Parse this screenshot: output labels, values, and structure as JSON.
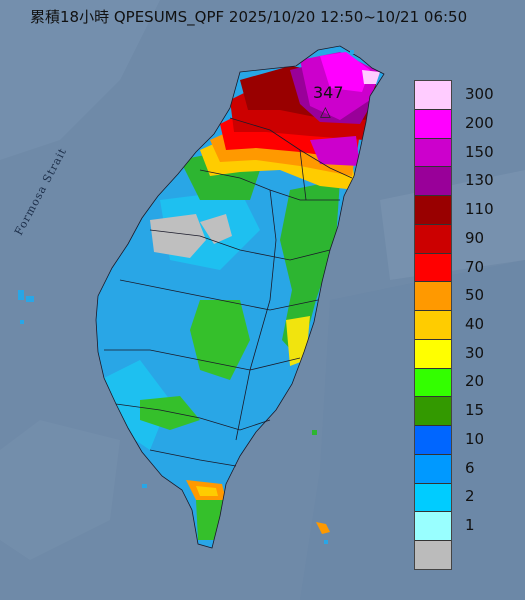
{
  "title": "累積18小時 QPESUMS_QPF 2025/10/20 12:50~10/21 06:50",
  "strait_label": "Formosa Strait",
  "peak_value": "347",
  "peak_marker_icon": "triangle-marker-icon",
  "colors": {
    "sea": "#6f8aa8",
    "land_base": "#29a6e6"
  },
  "legend": {
    "items": [
      {
        "label": "300",
        "color": "#ffccff"
      },
      {
        "label": "200",
        "color": "#ff00ff"
      },
      {
        "label": "150",
        "color": "#cc00cc"
      },
      {
        "label": "130",
        "color": "#990099"
      },
      {
        "label": "110",
        "color": "#990000"
      },
      {
        "label": "90",
        "color": "#cc0000"
      },
      {
        "label": "70",
        "color": "#ff0000"
      },
      {
        "label": "50",
        "color": "#ff9900"
      },
      {
        "label": "40",
        "color": "#ffcc00"
      },
      {
        "label": "30",
        "color": "#ffff00"
      },
      {
        "label": "20",
        "color": "#33ff00"
      },
      {
        "label": "15",
        "color": "#339900"
      },
      {
        "label": "10",
        "color": "#0066ff"
      },
      {
        "label": "6",
        "color": "#0099ff"
      },
      {
        "label": "2",
        "color": "#00ccff"
      },
      {
        "label": "1",
        "color": "#99ffff"
      },
      {
        "label": "",
        "color": "#bbbbbb"
      }
    ]
  }
}
